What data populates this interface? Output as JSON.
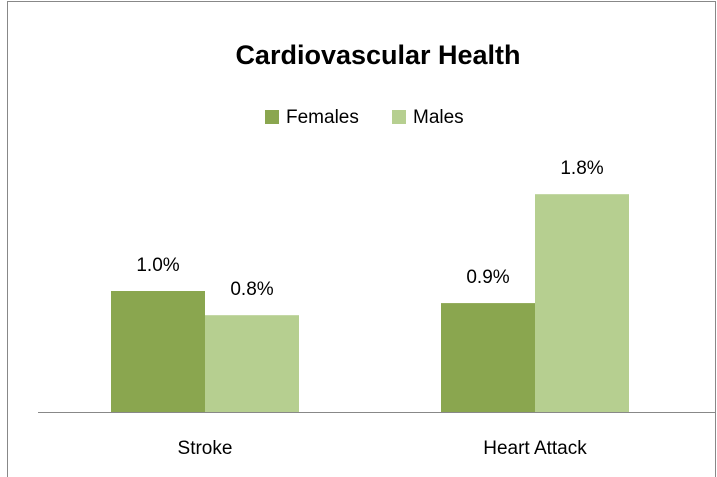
{
  "chart_data": {
    "type": "bar",
    "title": "Cardiovascular Health",
    "categories": [
      "Stroke",
      "Heart Attack"
    ],
    "series": [
      {
        "name": "Females",
        "color": "#8aa64f",
        "values": [
          1.0,
          0.9
        ],
        "value_labels": [
          "1.0%",
          "0.9%"
        ]
      },
      {
        "name": "Males",
        "color": "#b6cf90",
        "values": [
          0.8,
          1.8
        ],
        "value_labels": [
          "0.8%",
          "1.8%"
        ]
      }
    ],
    "ylim": [
      0,
      2
    ],
    "legend": "top"
  }
}
